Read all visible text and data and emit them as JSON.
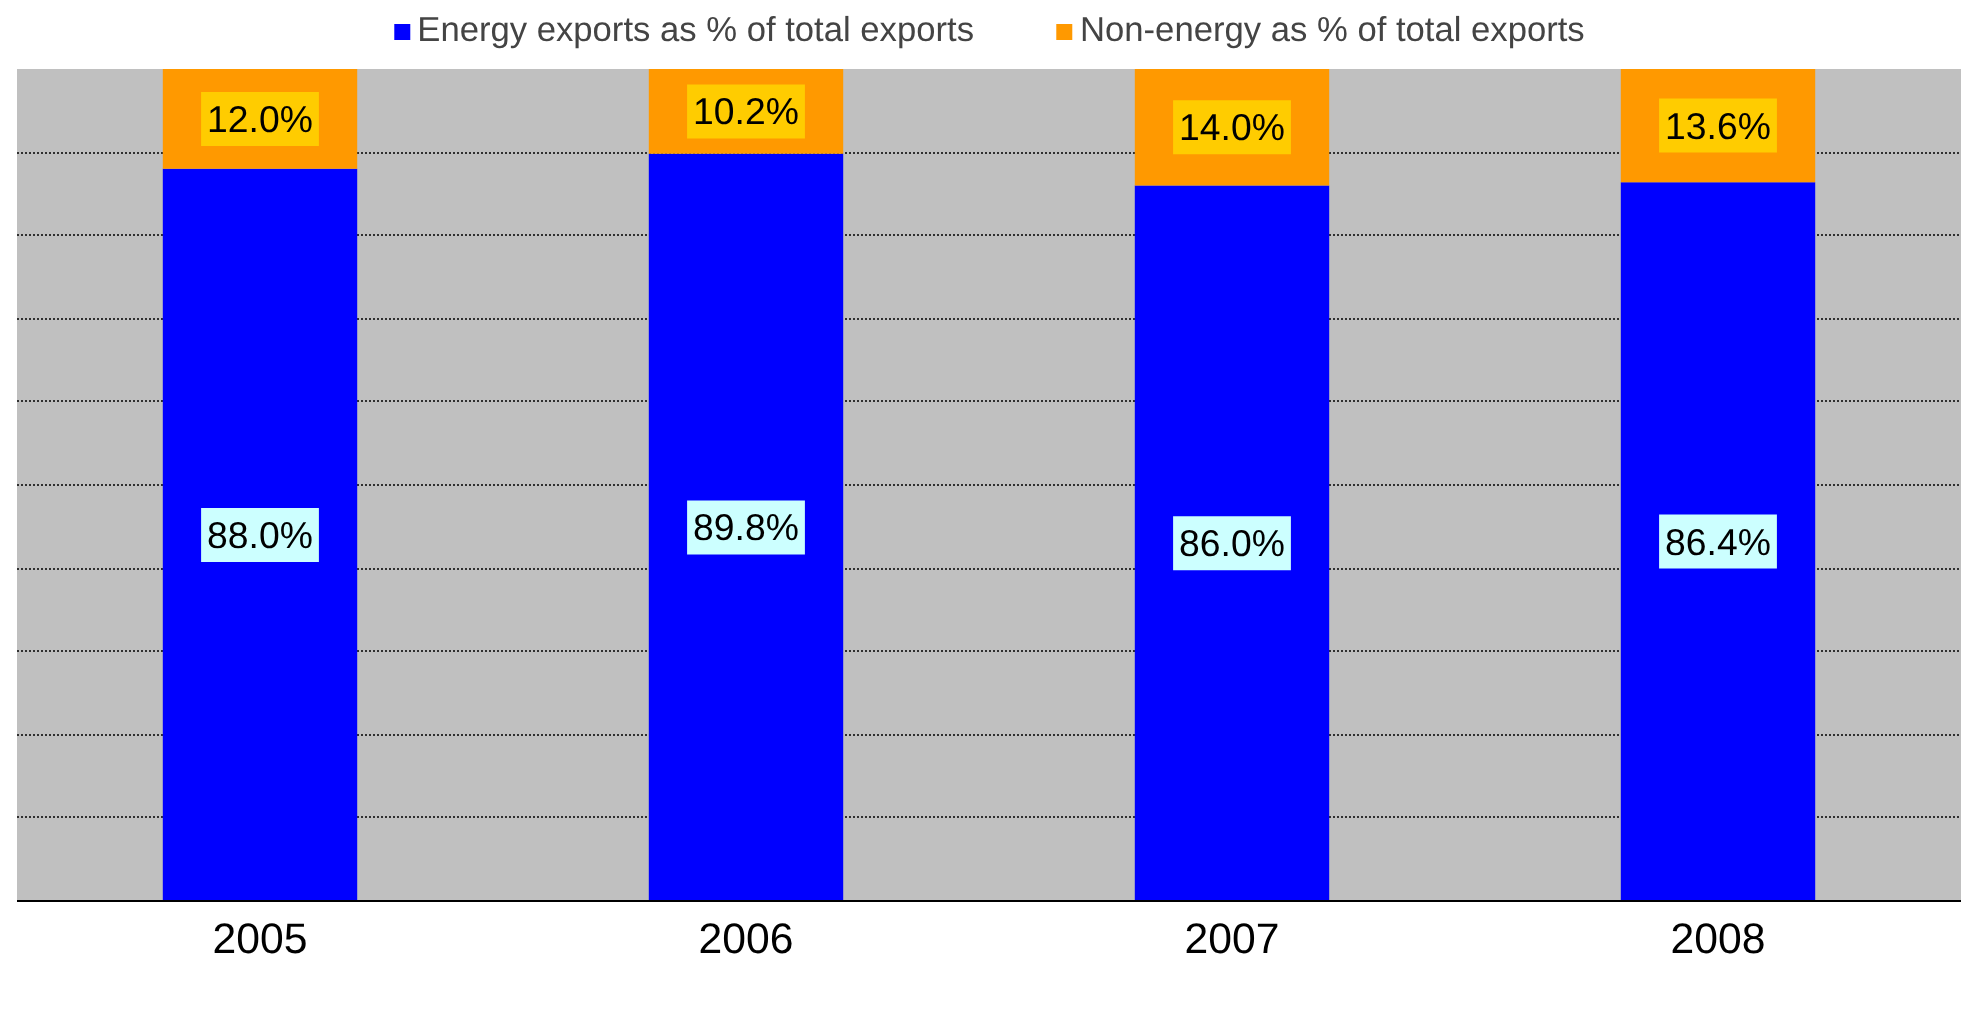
{
  "chart_data": {
    "type": "bar",
    "stacked": true,
    "categories": [
      "2005",
      "2006",
      "2007",
      "2008"
    ],
    "series": [
      {
        "name": "Energy exports as % of total exports",
        "color": "#0000ff",
        "values": [
          88.0,
          89.8,
          86.0,
          86.4
        ],
        "value_labels": [
          "88.0%",
          "89.8%",
          "86.0%",
          "86.4%"
        ]
      },
      {
        "name": "Non-energy as % of total exports",
        "color": "#ff9900",
        "values": [
          12.0,
          10.2,
          14.0,
          13.6
        ],
        "value_labels": [
          "12.0%",
          "10.2%",
          "14.0%",
          "13.6%"
        ]
      }
    ],
    "ylim": [
      0,
      100
    ],
    "yticks": [
      {
        "value": 0,
        "label": null
      },
      {
        "value": 10,
        "label": null
      },
      {
        "value": 20,
        "label": null
      },
      {
        "value": 30,
        "label": null
      },
      {
        "value": 40,
        "label": null
      },
      {
        "value": 50,
        "label": null
      },
      {
        "value": 60,
        "label": null
      },
      {
        "value": 70,
        "label": null
      },
      {
        "value": 80,
        "label": null
      },
      {
        "value": 90,
        "label": null
      },
      {
        "value": 100,
        "label": null
      }
    ],
    "grid": "y",
    "legend": "top",
    "tick_labels": "x"
  }
}
